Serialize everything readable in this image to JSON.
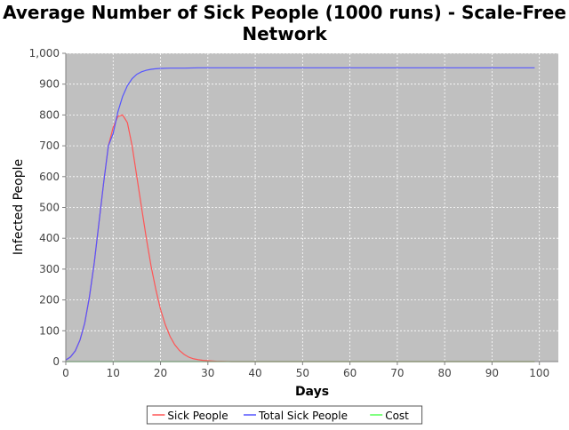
{
  "chart_data": {
    "type": "line",
    "title_line1": "Average Number of Sick People (1000 runs) - Scale-Free",
    "title_line2": "Network",
    "xlabel": "Days",
    "ylabel": "Infected People",
    "xlim": [
      0,
      104
    ],
    "ylim": [
      0,
      1000
    ],
    "x_ticks": [
      0,
      10,
      20,
      30,
      40,
      50,
      60,
      70,
      80,
      90,
      100
    ],
    "x_tick_labels": [
      "0",
      "10",
      "20",
      "30",
      "40",
      "50",
      "60",
      "70",
      "80",
      "90",
      "100"
    ],
    "y_ticks": [
      0,
      100,
      200,
      300,
      400,
      500,
      600,
      700,
      800,
      900,
      1000
    ],
    "y_tick_labels": [
      "0",
      "100",
      "200",
      "300",
      "400",
      "500",
      "600",
      "700",
      "800",
      "900",
      "1,000"
    ],
    "grid": true,
    "plot_background": "#c0c0c0",
    "legend_position": "bottom",
    "series": [
      {
        "name": "Sick People",
        "color": "#ff5555",
        "x": [
          0,
          1,
          2,
          3,
          4,
          5,
          6,
          7,
          8,
          9,
          10,
          11,
          12,
          13,
          14,
          15,
          16,
          17,
          18,
          19,
          20,
          21,
          22,
          23,
          24,
          25,
          26,
          27,
          28,
          29,
          30,
          31,
          32,
          33,
          35,
          40,
          50,
          60,
          70,
          80,
          90,
          99
        ],
        "y": [
          5,
          15,
          35,
          70,
          125,
          210,
          320,
          450,
          580,
          700,
          760,
          795,
          800,
          775,
          700,
          600,
          500,
          400,
          310,
          235,
          170,
          120,
          82,
          55,
          36,
          23,
          14,
          9,
          6,
          4,
          3,
          2,
          1,
          1,
          0,
          0,
          0,
          0,
          0,
          0,
          0,
          0
        ]
      },
      {
        "name": "Total Sick People",
        "color": "#5555ff",
        "x": [
          0,
          1,
          2,
          3,
          4,
          5,
          6,
          7,
          8,
          9,
          10,
          11,
          12,
          13,
          14,
          15,
          16,
          17,
          18,
          19,
          20,
          22,
          25,
          28,
          30,
          35,
          40,
          50,
          60,
          70,
          80,
          90,
          99
        ],
        "y": [
          5,
          15,
          35,
          70,
          125,
          210,
          320,
          450,
          580,
          700,
          740,
          810,
          860,
          895,
          918,
          932,
          940,
          945,
          948,
          950,
          951,
          952,
          952,
          953,
          953,
          953,
          953,
          953,
          953,
          953,
          953,
          953,
          953
        ]
      },
      {
        "name": "Cost",
        "color": "#55ff55",
        "x": [
          0,
          20,
          40,
          60,
          80,
          99
        ],
        "y": [
          0,
          0,
          0,
          0,
          0,
          0
        ]
      }
    ]
  }
}
